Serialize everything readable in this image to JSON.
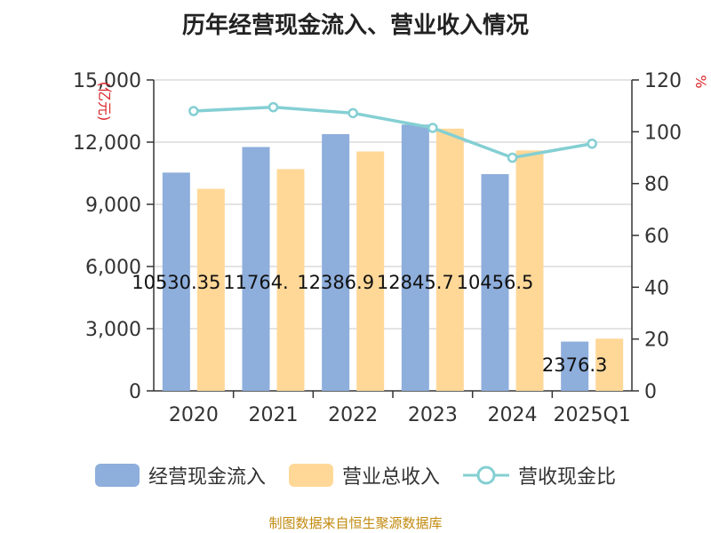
{
  "chart_data": {
    "type": "bar",
    "title": "历年经营现金流入、营业收入情况",
    "categories": [
      "2020",
      "2021",
      "2022",
      "2023",
      "2024",
      "2025Q1"
    ],
    "series": [
      {
        "name": "经营现金流入",
        "axis": "left",
        "color": "#8eaedc",
        "values": [
          10530.3,
          11764.1,
          12386.9,
          12845.7,
          10456.5,
          2376.3
        ],
        "labels": [
          "10530.35",
          "11764.",
          "12386.9",
          "12845.7",
          "10456.5",
          "2376.3"
        ]
      },
      {
        "name": "营业总收入",
        "axis": "left",
        "color": "#ffd898",
        "values": [
          9750,
          10700,
          11550,
          12650,
          11600,
          2520
        ]
      },
      {
        "name": "营收现金比",
        "axis": "right",
        "type": "line",
        "color": "#84cfd3",
        "values": [
          108,
          109.5,
          107.2,
          101.5,
          90,
          95.4
        ]
      }
    ],
    "yleft": {
      "label": "(亿元)",
      "ylim": [
        0,
        15000
      ],
      "ticks": [
        0,
        3000,
        6000,
        9000,
        12000,
        15000
      ],
      "tick_labels": [
        "0",
        "3,000",
        "6,000",
        "9,000",
        "12,000",
        "15,000"
      ]
    },
    "yright": {
      "label": "%",
      "ylim": [
        0,
        120
      ],
      "ticks": [
        0,
        20,
        40,
        60,
        80,
        100,
        120
      ],
      "tick_labels": [
        "0",
        "20",
        "40",
        "60",
        "80",
        "100",
        "120"
      ]
    },
    "grid": true,
    "legend_position": "bottom"
  },
  "source": "制图数据来自恒生聚源数据库"
}
